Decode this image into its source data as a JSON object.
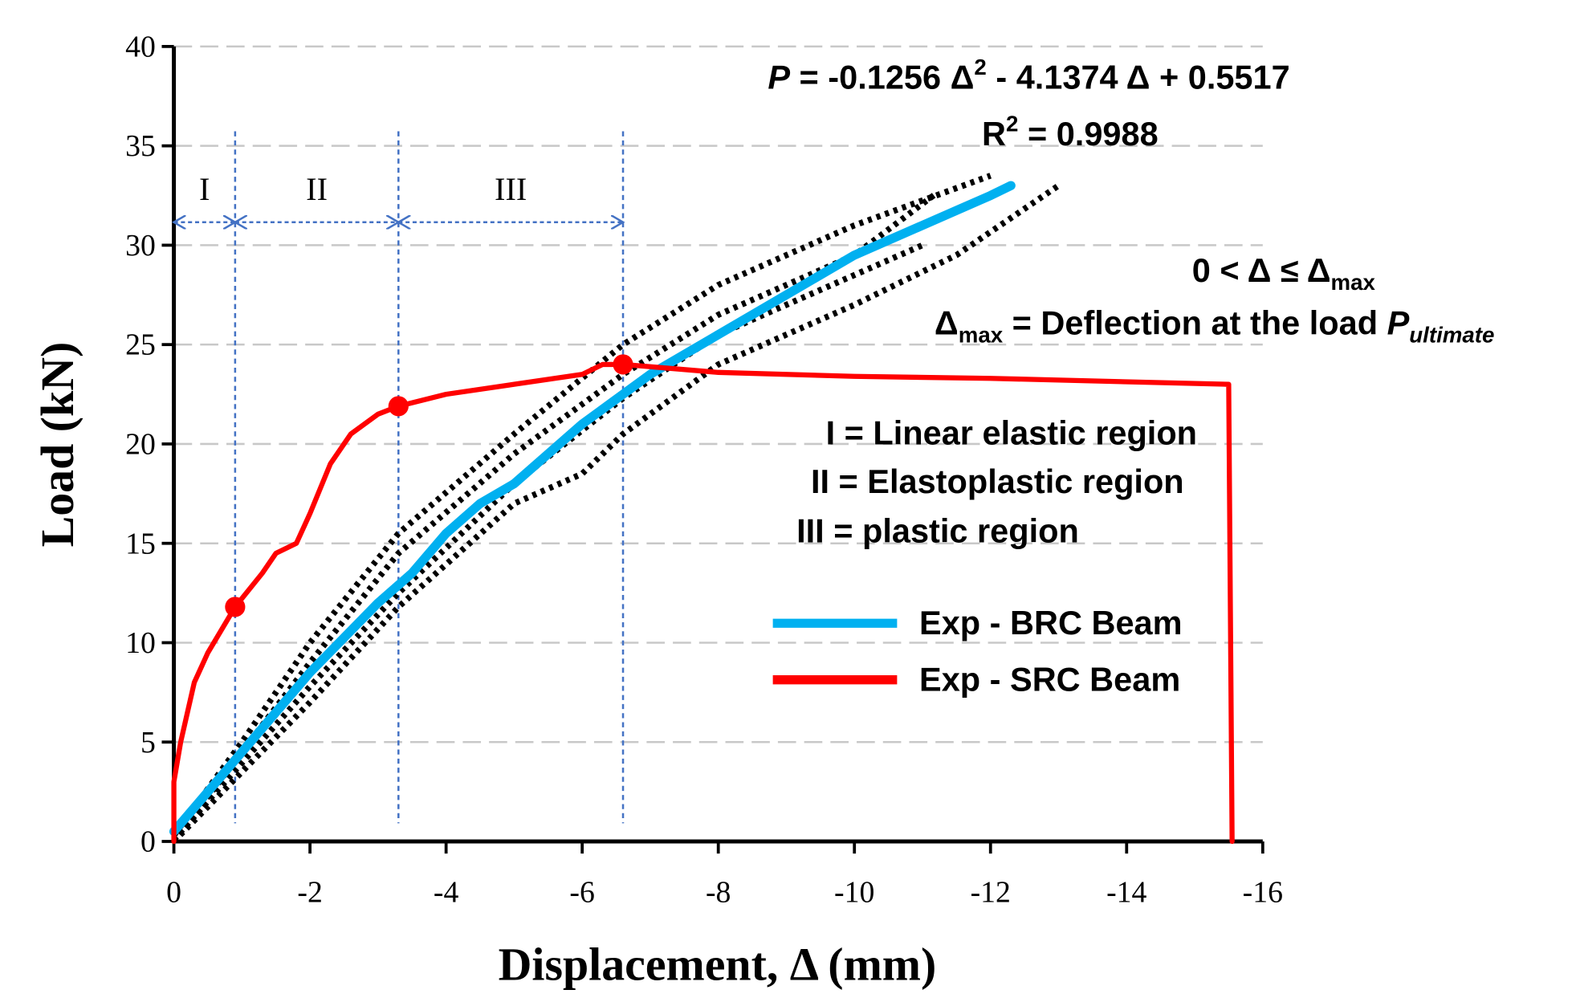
{
  "chart_data": {
    "type": "line",
    "xlabel": "Displacement, Δ  (mm)",
    "ylabel": "Load  (kN)",
    "xlim": [
      0,
      -16
    ],
    "xticks": [
      0,
      -2,
      -4,
      -6,
      -8,
      -10,
      -12,
      -14,
      -16
    ],
    "ylim": [
      0,
      40
    ],
    "yticks": [
      0,
      5,
      10,
      15,
      20,
      25,
      30,
      35,
      40
    ],
    "grid": true,
    "equation": [
      "P",
      " = -0.1256 Δ",
      "2",
      " - 4.1374 Δ + 0.5517"
    ],
    "r_squared": [
      "R",
      "2",
      " = 0.9988"
    ],
    "range": [
      "0 < Δ ≤ Δ",
      "max"
    ],
    "definition": [
      "Δ",
      "max",
      " = Deflection at the load ",
      "P",
      "ultimate"
    ],
    "region_notes": [
      "I =  Linear elastic region",
      "II = Elastoplastic region",
      "III = plastic region"
    ],
    "region_labels": [
      "I",
      "II",
      "III"
    ],
    "region_bounds": [
      -0.9,
      -3.3,
      -6.6
    ],
    "series": [
      {
        "name": "Exp - BRC Beam",
        "color": "#00b0f0",
        "width": 9,
        "x": [
          0,
          -1,
          -2,
          -3,
          -3.5,
          -4,
          -4.5,
          -5,
          -6,
          -7,
          -8,
          -9,
          -10,
          -11,
          -12,
          -12.3
        ],
        "values": [
          0.5,
          4.5,
          8.5,
          12,
          13.5,
          15.5,
          17,
          18,
          21,
          23.5,
          25.5,
          27.5,
          29.5,
          31,
          32.5,
          33
        ]
      },
      {
        "name": "Exp - SRC Beam",
        "color": "#ff0000",
        "width": 5,
        "x": [
          0,
          0,
          -0.1,
          -0.3,
          -0.5,
          -0.9,
          -1.3,
          -1.5,
          -1.8,
          -2,
          -2.3,
          -2.6,
          -3,
          -3.3,
          -4,
          -5,
          -6,
          -6.3,
          -6.6,
          -8,
          -10,
          -12,
          -15.5,
          -15.55
        ],
        "values": [
          0,
          3,
          5,
          8,
          9.5,
          11.8,
          13.5,
          14.5,
          15,
          16.5,
          19,
          20.5,
          21.5,
          21.9,
          22.5,
          23,
          23.5,
          24,
          24,
          23.6,
          23.4,
          23.3,
          23,
          0
        ]
      },
      {
        "color": "#000000",
        "style": "dotted",
        "x": [
          0,
          -1,
          -2,
          -3.3,
          -5,
          -6.6,
          -8,
          -10,
          -12
        ],
        "values": [
          0.3,
          5,
          10,
          15.5,
          20.5,
          25,
          28,
          31,
          33.5
        ]
      },
      {
        "color": "#000000",
        "style": "dotted",
        "x": [
          0,
          -2,
          -3.3,
          -5,
          -6.6,
          -8,
          -10,
          -11.2
        ],
        "values": [
          0,
          9,
          14.5,
          19.5,
          23.5,
          26.5,
          29.5,
          32.6
        ]
      },
      {
        "color": "#000000",
        "style": "dotted",
        "x": [
          0,
          -2,
          -3.3,
          -5,
          -6.6,
          -8,
          -10,
          -11
        ],
        "values": [
          0.1,
          7.8,
          12.5,
          18,
          22.3,
          25.5,
          28.5,
          30
        ]
      },
      {
        "color": "#000000",
        "style": "dotted",
        "x": [
          0,
          -2,
          -3.3,
          -5,
          -6,
          -6.6,
          -8,
          -10,
          -11.5,
          -13
        ],
        "values": [
          0,
          7,
          11.8,
          17,
          18.5,
          20.5,
          24,
          27,
          29.5,
          33
        ]
      }
    ],
    "points": {
      "color": "#ff0000",
      "x": [
        -0.9,
        -3.3,
        -6.6
      ],
      "values": [
        11.8,
        21.9,
        24
      ]
    }
  }
}
